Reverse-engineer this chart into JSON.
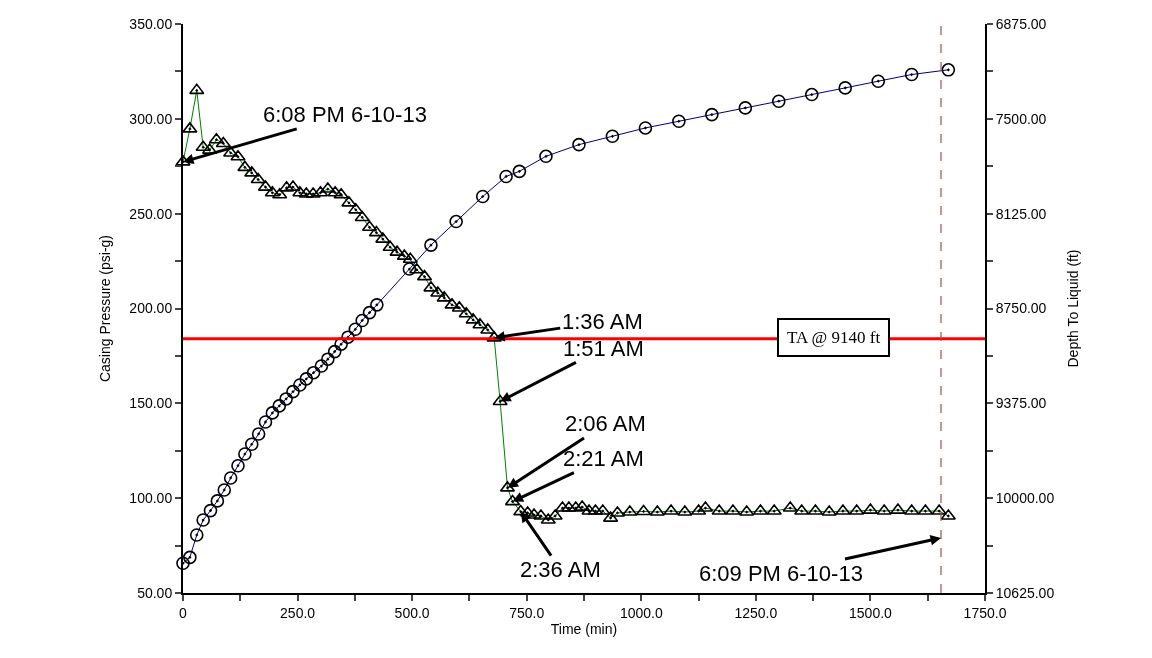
{
  "chart_data": {
    "type": "line",
    "xlabel": "Time (min)",
    "ylabel": "Casing Pressure (psi-g)",
    "y2label": "Depth To Liquid (ft)",
    "xlim": [
      0,
      1750
    ],
    "xticks": [
      {
        "value": 0,
        "label": "0"
      },
      {
        "value": 125,
        "label": null
      },
      {
        "value": 250,
        "label": "250.0"
      },
      {
        "value": 375,
        "label": null
      },
      {
        "value": 500,
        "label": "500.0"
      },
      {
        "value": 625,
        "label": null
      },
      {
        "value": 750,
        "label": "750.0"
      },
      {
        "value": 875,
        "label": null
      },
      {
        "value": 1000,
        "label": "1000.0"
      },
      {
        "value": 1125,
        "label": null
      },
      {
        "value": 1250,
        "label": "1250.0"
      },
      {
        "value": 1375,
        "label": null
      },
      {
        "value": 1500,
        "label": "1500.0"
      },
      {
        "value": 1625,
        "label": null
      },
      {
        "value": 1750,
        "label": "1750.0"
      }
    ],
    "ylim": [
      50,
      350
    ],
    "yticks": [
      {
        "value": 50,
        "label": "50.00"
      },
      {
        "value": 75,
        "label": null
      },
      {
        "value": 100,
        "label": "100.00"
      },
      {
        "value": 125,
        "label": null
      },
      {
        "value": 150,
        "label": "150.00"
      },
      {
        "value": 175,
        "label": null
      },
      {
        "value": 200,
        "label": "200.00"
      },
      {
        "value": 225,
        "label": null
      },
      {
        "value": 250,
        "label": "250.00"
      },
      {
        "value": 275,
        "label": null
      },
      {
        "value": 300,
        "label": "300.00"
      },
      {
        "value": 325,
        "label": null
      },
      {
        "value": 350,
        "label": "350.00"
      }
    ],
    "y2lim": [
      10625,
      6875
    ],
    "y2ticks": [
      {
        "value": 10625,
        "label": "10625.00"
      },
      {
        "value": 10312.5,
        "label": null
      },
      {
        "value": 10000,
        "label": "10000.00"
      },
      {
        "value": 9687.5,
        "label": null
      },
      {
        "value": 9375,
        "label": "9375.00"
      },
      {
        "value": 9062.5,
        "label": null
      },
      {
        "value": 8750,
        "label": "8750.00"
      },
      {
        "value": 8437.5,
        "label": null
      },
      {
        "value": 8125,
        "label": "8125.00"
      },
      {
        "value": 7812.5,
        "label": null
      },
      {
        "value": 7500,
        "label": "7500.00"
      },
      {
        "value": 7187.5,
        "label": null
      },
      {
        "value": 6875,
        "label": "6875.00"
      }
    ],
    "series": [
      {
        "color": "#008000",
        "marker": "triangle",
        "x": [
          0,
          15,
          30,
          44,
          58,
          73,
          88,
          104,
          120,
          135,
          150,
          164,
          180,
          195,
          211,
          226,
          240,
          255,
          269,
          284,
          300,
          316,
          332,
          345,
          362,
          377,
          391,
          407,
          422,
          436,
          452,
          467,
          483,
          496,
          510,
          527,
          541,
          556,
          570,
          587,
          603,
          618,
          633,
          648,
          665,
          679,
          692,
          708,
          719,
          737,
          752,
          766,
          781,
          797,
          812,
          828,
          842,
          857,
          871,
          886,
          900,
          916,
          933,
          948,
          975,
          1005,
          1035,
          1065,
          1095,
          1125,
          1140,
          1170,
          1200,
          1230,
          1260,
          1290,
          1325,
          1350,
          1380,
          1410,
          1440,
          1470,
          1500,
          1530,
          1560,
          1590,
          1620,
          1650,
          1670
        ],
        "values": [
          277.3,
          294.7,
          315,
          285,
          283.5,
          289,
          287,
          282,
          280,
          274.4,
          271.5,
          268,
          264,
          261,
          260,
          263.6,
          264,
          261,
          260.4,
          260.4,
          261,
          263,
          261,
          260,
          255.7,
          252,
          248,
          242.8,
          240,
          236.6,
          232.3,
          229.7,
          227.6,
          226,
          220.4,
          216.8,
          210.9,
          208.2,
          205.6,
          201.9,
          200.3,
          197.2,
          194,
          191.4,
          188.7,
          184.5,
          151,
          105.4,
          98.2,
          92.9,
          92.2,
          91.1,
          90.6,
          88.5,
          90.6,
          94.8,
          94.8,
          94.8,
          95.3,
          93.2,
          93.2,
          93.2,
          89.5,
          92.2,
          92.7,
          93,
          92.7,
          93.2,
          92.7,
          93.2,
          94.8,
          93.2,
          93.2,
          92.7,
          93.2,
          93.2,
          94.8,
          93.2,
          93.2,
          92.7,
          93.2,
          93.2,
          93.7,
          93.2,
          93.7,
          93.2,
          93.2,
          93.2,
          90.6
        ]
      },
      {
        "color": "#000080",
        "marker": "circle",
        "axis": "y2",
        "x": [
          0,
          15,
          30,
          44,
          60,
          75,
          90,
          104,
          120,
          135,
          150,
          165,
          180,
          195,
          210,
          225,
          240,
          255,
          269,
          285,
          302,
          316,
          331,
          345,
          360,
          376,
          391,
          407,
          423,
          494,
          541,
          596,
          654,
          705,
          734,
          792,
          864,
          937,
          1009,
          1082,
          1154,
          1227,
          1300,
          1372,
          1445,
          1517,
          1590,
          1670
        ],
        "values": [
          10429,
          10390,
          10243,
          10144,
          10082,
          10018,
          9946,
          9867,
          9786,
          9709,
          9645,
          9577,
          9498,
          9438,
          9392,
          9346,
          9298,
          9254,
          9214,
          9173,
          9129,
          9084,
          9034,
          8985,
          8939,
          8887,
          8829,
          8777,
          8726,
          8490,
          8332,
          8177,
          8012,
          7880,
          7846,
          7747,
          7670,
          7615,
          7560,
          7516,
          7472,
          7428,
          7384,
          7340,
          7296,
          7252,
          7208,
          7177
        ]
      }
    ],
    "ref_lines": [
      {
        "axis": "y2",
        "value": 8950,
        "label": "TA @ 9140 ft",
        "color": "#ff0000",
        "line_style": "solid"
      },
      {
        "axis": "x",
        "value": 1654,
        "color": "#a05050",
        "line_style": "dashed"
      }
    ],
    "annotations": [
      {
        "text": "6:08 PM 6-10-13",
        "x": 0,
        "y": 277.3
      },
      {
        "text": "1:36 AM",
        "x": 679,
        "y": 184.5
      },
      {
        "text": "1:51 AM",
        "x": 692,
        "y": 151
      },
      {
        "text": "2:06 AM",
        "x": 708,
        "y": 105.4
      },
      {
        "text": "2:21 AM",
        "x": 719,
        "y": 98.2
      },
      {
        "text": "2:36 AM",
        "x": 737,
        "y": 92.9
      },
      {
        "text": "6:09 PM 6-10-13",
        "x": 1654,
        "y": 79
      }
    ]
  }
}
